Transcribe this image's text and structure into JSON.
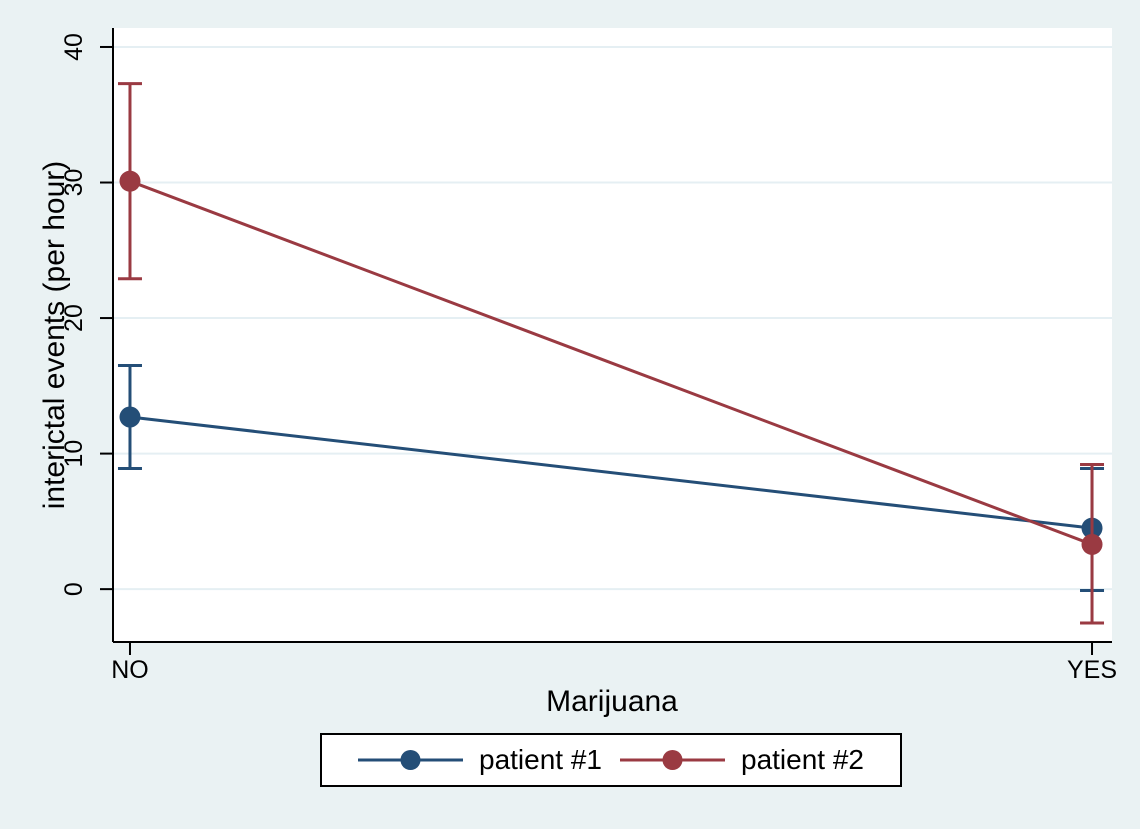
{
  "figure": {
    "background_color": "#eaf2f3",
    "plot_background_color": "#ffffff",
    "gridline_color": "#e5eff3",
    "axis_color": "#000000",
    "legend_border_color": "#000000"
  },
  "chart_data": {
    "type": "line",
    "title": "",
    "xlabel": "Marijuana",
    "ylabel": "interictal events (per hour)",
    "categories": [
      "NO",
      "YES"
    ],
    "y_ticks": [
      0,
      10,
      20,
      30,
      40
    ],
    "ylim": [
      -3.9,
      41.4
    ],
    "grid": true,
    "error_bars": true,
    "marker": "circle",
    "legend_position": "bottom",
    "series": [
      {
        "name": "patient #1",
        "color": "#244e77",
        "means": [
          12.7,
          4.5
        ],
        "ci_low": [
          8.9,
          -0.1
        ],
        "ci_high": [
          16.5,
          8.9
        ]
      },
      {
        "name": "patient #2",
        "color": "#9a3a42",
        "means": [
          30.1,
          3.3
        ],
        "ci_low": [
          22.9,
          -2.5
        ],
        "ci_high": [
          37.3,
          9.2
        ]
      }
    ]
  }
}
